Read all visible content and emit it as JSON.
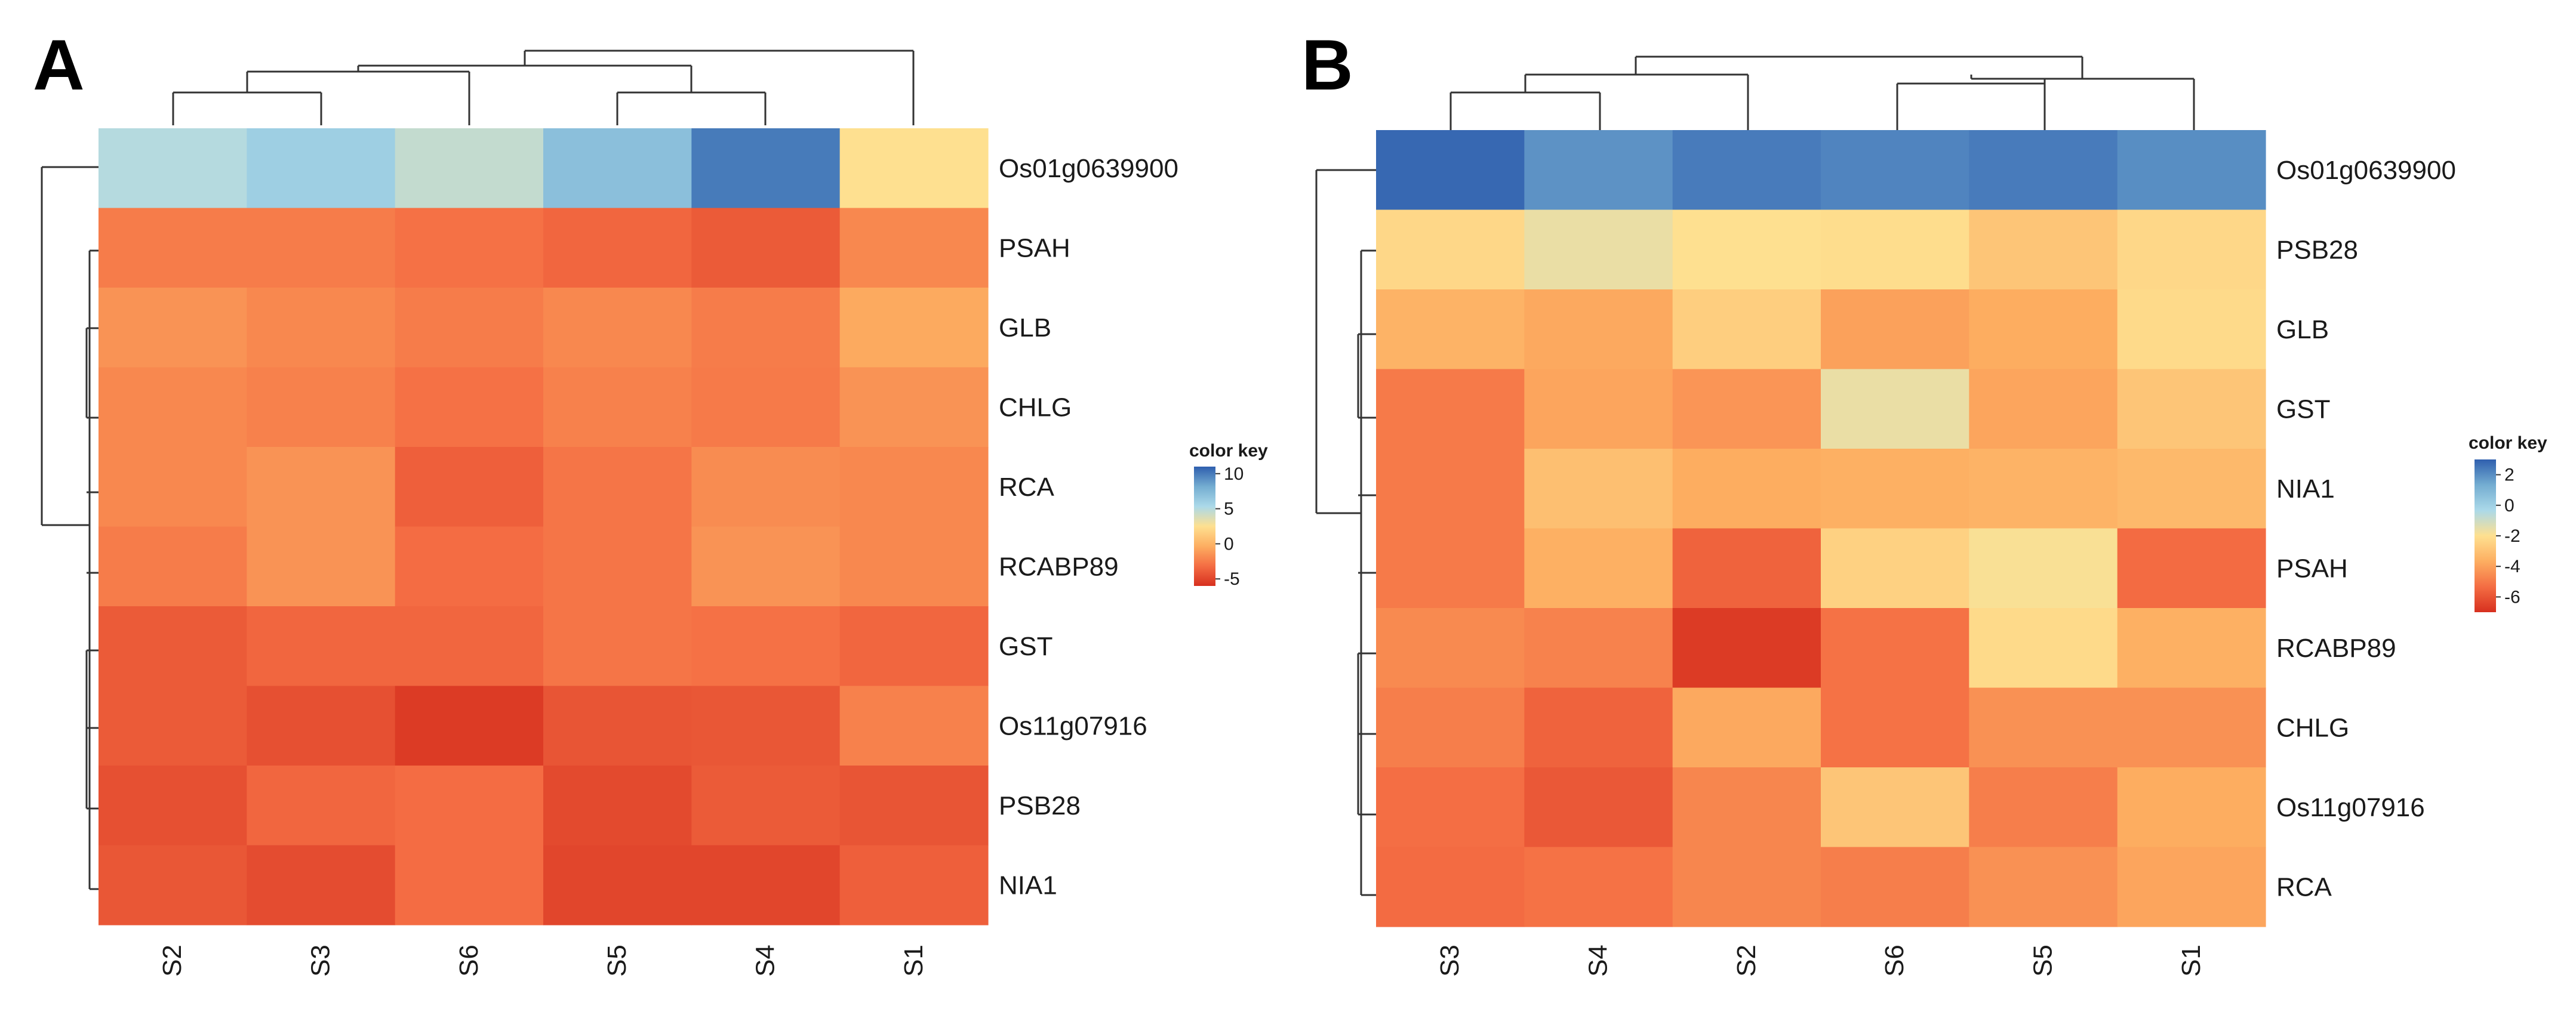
{
  "chart_data": [
    {
      "type": "heatmap",
      "panel": "A",
      "columns": [
        "S2",
        "S3",
        "S6",
        "S5",
        "S4",
        "S1"
      ],
      "rows": [
        "Os01g0639900",
        "PSAH",
        "GLB",
        "CHLG",
        "RCA",
        "RCABP89",
        "GST",
        "Os11g07916",
        "PSB28",
        "NIA1"
      ],
      "values": [
        [
          5.0,
          6.0,
          4.5,
          7.0,
          10.0,
          2.5
        ],
        [
          -2.5,
          -2.5,
          -3.0,
          -3.5,
          -4.0,
          -2.0
        ],
        [
          -1.5,
          -2.0,
          -2.5,
          -2.0,
          -2.5,
          -0.5
        ],
        [
          -2.0,
          -2.3,
          -3.0,
          -2.3,
          -2.6,
          -1.5
        ],
        [
          -2.0,
          -1.5,
          -3.8,
          -2.8,
          -1.8,
          -2.0
        ],
        [
          -2.5,
          -1.5,
          -3.2,
          -2.8,
          -1.5,
          -2.0
        ],
        [
          -4.0,
          -3.5,
          -3.5,
          -2.8,
          -3.0,
          -3.5
        ],
        [
          -4.0,
          -4.5,
          -5.5,
          -4.3,
          -4.2,
          -2.3
        ],
        [
          -4.5,
          -3.5,
          -3.2,
          -4.8,
          -4.0,
          -4.3
        ],
        [
          -4.2,
          -4.7,
          -3.2,
          -5.0,
          -5.0,
          -3.8
        ]
      ],
      "color_key": {
        "title": "color key",
        "ticks": [
          "10",
          "5",
          "0",
          "-5"
        ],
        "range": [
          -6,
          11
        ],
        "colors": [
          "#d7301f",
          "#f46d43",
          "#fdae61",
          "#fee090",
          "#abd9e9",
          "#74add1",
          "#2f5fae"
        ]
      }
    },
    {
      "type": "heatmap",
      "panel": "B",
      "columns": [
        "S3",
        "S4",
        "S2",
        "S6",
        "S5",
        "S1"
      ],
      "rows": [
        "Os01g0639900",
        "PSB28",
        "GLB",
        "GST",
        "NIA1",
        "PSAH",
        "RCABP89",
        "CHLG",
        "Os11g07916",
        "RCA"
      ],
      "values": [
        [
          2.8,
          1.9,
          2.4,
          2.2,
          2.4,
          2.0
        ],
        [
          -2.3,
          -1.6,
          -2.0,
          -2.1,
          -2.9,
          -2.3
        ],
        [
          -3.5,
          -3.8,
          -2.6,
          -4.0,
          -3.7,
          -2.2
        ],
        [
          -5.0,
          -3.9,
          -4.3,
          -1.6,
          -3.9,
          -2.9
        ],
        [
          -5.0,
          -3.1,
          -3.7,
          -3.6,
          -3.5,
          -3.3
        ],
        [
          -5.0,
          -3.6,
          -5.6,
          -2.5,
          -1.9,
          -5.4
        ],
        [
          -4.6,
          -4.8,
          -6.7,
          -5.2,
          -2.2,
          -3.6
        ],
        [
          -4.9,
          -5.6,
          -3.8,
          -5.2,
          -4.4,
          -4.4
        ],
        [
          -5.3,
          -5.9,
          -4.7,
          -2.9,
          -4.9,
          -3.7
        ],
        [
          -5.4,
          -5.2,
          -4.7,
          -4.9,
          -4.4,
          -3.9
        ]
      ],
      "color_key": {
        "title": "color key",
        "ticks": [
          "2",
          "0",
          "-2",
          "-4",
          "-6"
        ],
        "range": [
          -7,
          3
        ],
        "colors": [
          "#d7301f",
          "#f46d43",
          "#fdae61",
          "#fee090",
          "#abd9e9",
          "#74add1",
          "#2f5fae"
        ]
      }
    }
  ]
}
